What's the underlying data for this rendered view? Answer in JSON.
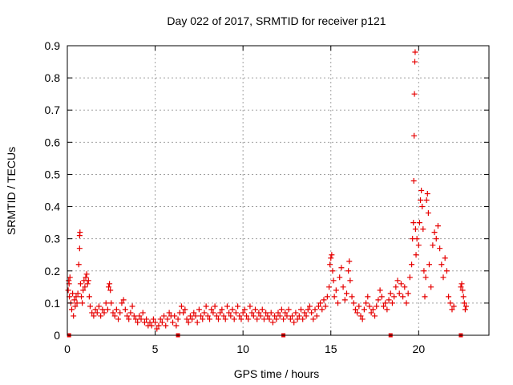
{
  "chart_data": {
    "type": "scatter",
    "title": "Day 022 of 2017, SRMTID for receiver p121",
    "xlabel": "GPS time / hours",
    "ylabel": "SRMTID / TECUs",
    "xlim": [
      0,
      24
    ],
    "ylim": [
      0,
      0.9
    ],
    "xticks": [
      0,
      5,
      10,
      15,
      20
    ],
    "yticks": [
      0,
      0.1,
      0.2,
      0.3,
      0.4,
      0.5,
      0.6,
      0.7,
      0.8,
      0.9
    ],
    "grid": true,
    "marker": "plus",
    "color": "#e60000",
    "series": [
      {
        "points": [
          [
            0.05,
            0.14
          ],
          [
            0.08,
            0.17
          ],
          [
            0.1,
            0.16
          ],
          [
            0.12,
            0.12
          ],
          [
            0.15,
            0.18
          ],
          [
            0.2,
            0.1
          ],
          [
            0.25,
            0.08
          ],
          [
            0.3,
            0.13
          ],
          [
            0.35,
            0.06
          ],
          [
            0.4,
            0.11
          ],
          [
            0.45,
            0.09
          ],
          [
            0.5,
            0.12
          ],
          [
            0.55,
            0.1
          ],
          [
            0.6,
            0.13
          ],
          [
            0.65,
            0.22
          ],
          [
            0.7,
            0.27
          ],
          [
            0.7,
            0.31
          ],
          [
            0.72,
            0.32
          ],
          [
            0.75,
            0.16
          ],
          [
            0.8,
            0.12
          ],
          [
            0.85,
            0.1
          ],
          [
            0.9,
            0.14
          ],
          [
            0.95,
            0.17
          ],
          [
            1.0,
            0.15
          ],
          [
            1.05,
            0.18
          ],
          [
            1.1,
            0.19
          ],
          [
            1.15,
            0.16
          ],
          [
            1.2,
            0.17
          ],
          [
            1.25,
            0.12
          ],
          [
            1.3,
            0.09
          ],
          [
            1.4,
            0.07
          ],
          [
            1.5,
            0.06
          ],
          [
            1.6,
            0.08
          ],
          [
            1.7,
            0.07
          ],
          [
            1.8,
            0.09
          ],
          [
            1.9,
            0.06
          ],
          [
            2.0,
            0.08
          ],
          [
            2.1,
            0.07
          ],
          [
            2.2,
            0.1
          ],
          [
            2.3,
            0.08
          ],
          [
            2.35,
            0.15
          ],
          [
            2.4,
            0.16
          ],
          [
            2.45,
            0.14
          ],
          [
            2.5,
            0.1
          ],
          [
            2.6,
            0.07
          ],
          [
            2.7,
            0.06
          ],
          [
            2.8,
            0.08
          ],
          [
            2.9,
            0.05
          ],
          [
            3.0,
            0.07
          ],
          [
            3.1,
            0.1
          ],
          [
            3.2,
            0.11
          ],
          [
            3.3,
            0.08
          ],
          [
            3.4,
            0.06
          ],
          [
            3.5,
            0.05
          ],
          [
            3.6,
            0.07
          ],
          [
            3.7,
            0.09
          ],
          [
            3.8,
            0.06
          ],
          [
            3.9,
            0.05
          ],
          [
            4.0,
            0.04
          ],
          [
            4.1,
            0.06
          ],
          [
            4.2,
            0.05
          ],
          [
            4.3,
            0.07
          ],
          [
            4.4,
            0.04
          ],
          [
            4.5,
            0.05
          ],
          [
            4.6,
            0.03
          ],
          [
            4.7,
            0.04
          ],
          [
            4.8,
            0.03
          ],
          [
            4.9,
            0.05
          ],
          [
            5.0,
            0.04
          ],
          [
            5.1,
            0.02
          ],
          [
            5.2,
            0.03
          ],
          [
            5.3,
            0.05
          ],
          [
            5.4,
            0.04
          ],
          [
            5.5,
            0.06
          ],
          [
            5.6,
            0.03
          ],
          [
            5.7,
            0.05
          ],
          [
            5.8,
            0.07
          ],
          [
            5.9,
            0.06
          ],
          [
            6.0,
            0.04
          ],
          [
            6.1,
            0.06
          ],
          [
            6.2,
            0.03
          ],
          [
            6.3,
            0.05
          ],
          [
            6.4,
            0.07
          ],
          [
            6.5,
            0.09
          ],
          [
            6.6,
            0.07
          ],
          [
            6.7,
            0.08
          ],
          [
            6.8,
            0.05
          ],
          [
            6.9,
            0.04
          ],
          [
            7.0,
            0.06
          ],
          [
            7.1,
            0.05
          ],
          [
            7.2,
            0.07
          ],
          [
            7.3,
            0.06
          ],
          [
            7.4,
            0.04
          ],
          [
            7.5,
            0.08
          ],
          [
            7.6,
            0.06
          ],
          [
            7.7,
            0.05
          ],
          [
            7.8,
            0.07
          ],
          [
            7.9,
            0.09
          ],
          [
            8.0,
            0.06
          ],
          [
            8.1,
            0.05
          ],
          [
            8.2,
            0.08
          ],
          [
            8.3,
            0.07
          ],
          [
            8.4,
            0.09
          ],
          [
            8.5,
            0.06
          ],
          [
            8.6,
            0.05
          ],
          [
            8.7,
            0.07
          ],
          [
            8.8,
            0.08
          ],
          [
            8.9,
            0.06
          ],
          [
            9.0,
            0.05
          ],
          [
            9.1,
            0.09
          ],
          [
            9.2,
            0.07
          ],
          [
            9.3,
            0.06
          ],
          [
            9.4,
            0.08
          ],
          [
            9.5,
            0.05
          ],
          [
            9.6,
            0.07
          ],
          [
            9.7,
            0.09
          ],
          [
            9.8,
            0.06
          ],
          [
            9.9,
            0.05
          ],
          [
            10.0,
            0.07
          ],
          [
            10.1,
            0.08
          ],
          [
            10.2,
            0.06
          ],
          [
            10.3,
            0.05
          ],
          [
            10.4,
            0.09
          ],
          [
            10.5,
            0.07
          ],
          [
            10.6,
            0.06
          ],
          [
            10.7,
            0.08
          ],
          [
            10.8,
            0.05
          ],
          [
            10.9,
            0.07
          ],
          [
            11.0,
            0.06
          ],
          [
            11.1,
            0.08
          ],
          [
            11.2,
            0.05
          ],
          [
            11.3,
            0.07
          ],
          [
            11.4,
            0.06
          ],
          [
            11.5,
            0.05
          ],
          [
            11.6,
            0.07
          ],
          [
            11.7,
            0.04
          ],
          [
            11.8,
            0.06
          ],
          [
            11.9,
            0.05
          ],
          [
            12.0,
            0.07
          ],
          [
            12.1,
            0.06
          ],
          [
            12.2,
            0.08
          ],
          [
            12.3,
            0.05
          ],
          [
            12.4,
            0.07
          ],
          [
            12.5,
            0.06
          ],
          [
            12.6,
            0.08
          ],
          [
            12.7,
            0.05
          ],
          [
            12.8,
            0.06
          ],
          [
            12.9,
            0.04
          ],
          [
            13.0,
            0.07
          ],
          [
            13.1,
            0.05
          ],
          [
            13.2,
            0.06
          ],
          [
            13.3,
            0.08
          ],
          [
            13.4,
            0.05
          ],
          [
            13.5,
            0.07
          ],
          [
            13.6,
            0.06
          ],
          [
            13.7,
            0.08
          ],
          [
            13.8,
            0.09
          ],
          [
            13.9,
            0.07
          ],
          [
            14.0,
            0.05
          ],
          [
            14.1,
            0.08
          ],
          [
            14.2,
            0.06
          ],
          [
            14.3,
            0.09
          ],
          [
            14.4,
            0.1
          ],
          [
            14.5,
            0.08
          ],
          [
            14.6,
            0.11
          ],
          [
            14.7,
            0.09
          ],
          [
            14.8,
            0.12
          ],
          [
            14.9,
            0.15
          ],
          [
            14.95,
            0.22
          ],
          [
            15.0,
            0.24
          ],
          [
            15.05,
            0.25
          ],
          [
            15.1,
            0.2
          ],
          [
            15.15,
            0.17
          ],
          [
            15.2,
            0.12
          ],
          [
            15.3,
            0.14
          ],
          [
            15.4,
            0.1
          ],
          [
            15.5,
            0.18
          ],
          [
            15.6,
            0.21
          ],
          [
            15.7,
            0.15
          ],
          [
            15.8,
            0.11
          ],
          [
            15.9,
            0.13
          ],
          [
            16.0,
            0.2
          ],
          [
            16.05,
            0.23
          ],
          [
            16.1,
            0.17
          ],
          [
            16.2,
            0.12
          ],
          [
            16.3,
            0.1
          ],
          [
            16.4,
            0.08
          ],
          [
            16.5,
            0.07
          ],
          [
            16.6,
            0.09
          ],
          [
            16.7,
            0.06
          ],
          [
            16.8,
            0.05
          ],
          [
            16.9,
            0.08
          ],
          [
            17.0,
            0.1
          ],
          [
            17.1,
            0.12
          ],
          [
            17.2,
            0.09
          ],
          [
            17.3,
            0.07
          ],
          [
            17.4,
            0.08
          ],
          [
            17.5,
            0.06
          ],
          [
            17.6,
            0.09
          ],
          [
            17.7,
            0.11
          ],
          [
            17.8,
            0.14
          ],
          [
            17.9,
            0.12
          ],
          [
            18.0,
            0.09
          ],
          [
            18.1,
            0.1
          ],
          [
            18.2,
            0.08
          ],
          [
            18.3,
            0.11
          ],
          [
            18.4,
            0.13
          ],
          [
            18.5,
            0.1
          ],
          [
            18.6,
            0.12
          ],
          [
            18.7,
            0.15
          ],
          [
            18.8,
            0.17
          ],
          [
            18.9,
            0.13
          ],
          [
            19.0,
            0.16
          ],
          [
            19.1,
            0.12
          ],
          [
            19.2,
            0.15
          ],
          [
            19.3,
            0.1
          ],
          [
            19.4,
            0.13
          ],
          [
            19.5,
            0.18
          ],
          [
            19.6,
            0.22
          ],
          [
            19.65,
            0.3
          ],
          [
            19.7,
            0.35
          ],
          [
            19.72,
            0.48
          ],
          [
            19.74,
            0.62
          ],
          [
            19.76,
            0.75
          ],
          [
            19.78,
            0.85
          ],
          [
            19.8,
            0.88
          ],
          [
            19.82,
            0.33
          ],
          [
            19.85,
            0.25
          ],
          [
            19.9,
            0.3
          ],
          [
            20.0,
            0.28
          ],
          [
            20.05,
            0.35
          ],
          [
            20.1,
            0.42
          ],
          [
            20.15,
            0.45
          ],
          [
            20.2,
            0.4
          ],
          [
            20.25,
            0.33
          ],
          [
            20.3,
            0.2
          ],
          [
            20.35,
            0.12
          ],
          [
            20.4,
            0.18
          ],
          [
            20.45,
            0.42
          ],
          [
            20.5,
            0.44
          ],
          [
            20.55,
            0.38
          ],
          [
            20.6,
            0.22
          ],
          [
            20.7,
            0.15
          ],
          [
            20.8,
            0.28
          ],
          [
            20.9,
            0.32
          ],
          [
            21.0,
            0.3
          ],
          [
            21.1,
            0.34
          ],
          [
            21.2,
            0.27
          ],
          [
            21.3,
            0.22
          ],
          [
            21.4,
            0.18
          ],
          [
            21.5,
            0.24
          ],
          [
            21.6,
            0.2
          ],
          [
            21.7,
            0.12
          ],
          [
            21.8,
            0.1
          ],
          [
            21.9,
            0.08
          ],
          [
            22.0,
            0.09
          ],
          [
            22.4,
            0.15
          ],
          [
            22.45,
            0.16
          ],
          [
            22.5,
            0.14
          ],
          [
            22.55,
            0.12
          ],
          [
            22.6,
            0.1
          ],
          [
            22.65,
            0.08
          ],
          [
            22.7,
            0.09
          ]
        ]
      }
    ],
    "x_markers": [
      0.1,
      6.3,
      12.3,
      18.4,
      22.4
    ]
  }
}
